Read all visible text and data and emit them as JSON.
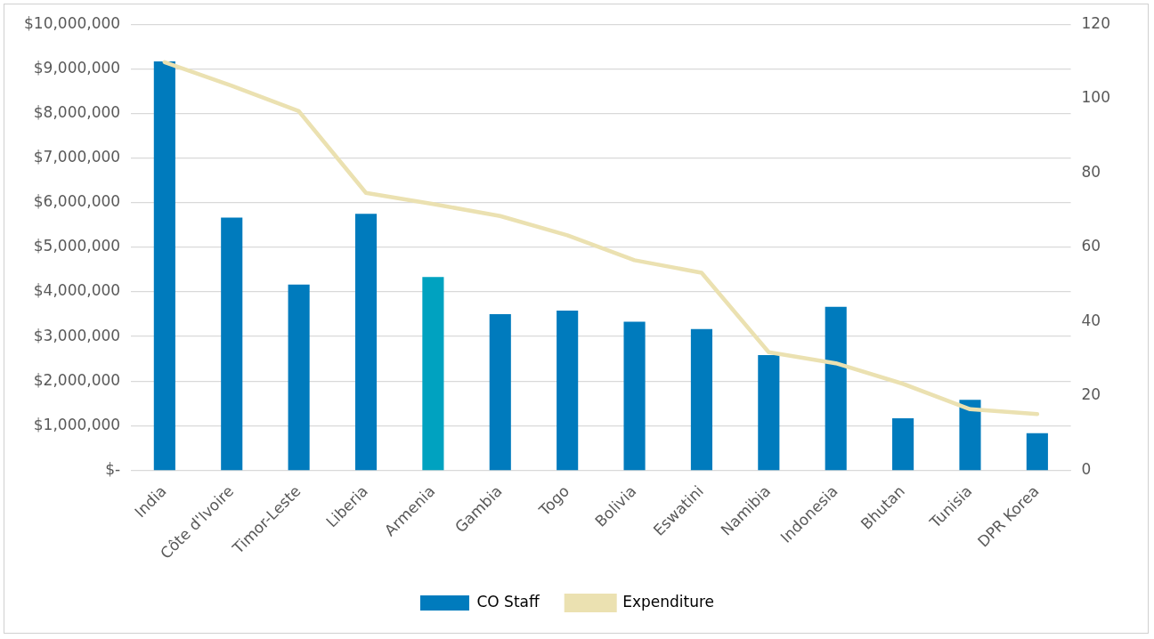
{
  "chart_data": {
    "type": "bar",
    "categories": [
      "India",
      "Côte d'Ivoire",
      "Timor-Leste",
      "Liberia",
      "Armenia",
      "Gambia",
      "Togo",
      "Bolivia",
      "Eswatini",
      "Namibia",
      "Indonesia",
      "Bhutan",
      "Tunisia",
      "DPR Korea"
    ],
    "series": [
      {
        "name": "CO Staff",
        "axis": "y2",
        "color": "#007bbd",
        "colors": [
          "#007bbd",
          "#007bbd",
          "#007bbd",
          "#007bbd",
          "#00a2c0",
          "#007bbd",
          "#007bbd",
          "#007bbd",
          "#007bbd",
          "#007bbd",
          "#007bbd",
          "#007bbd",
          "#007bbd",
          "#007bbd"
        ],
        "values": [
          110,
          68,
          50,
          69,
          52,
          42,
          43,
          40,
          38,
          31,
          44,
          14,
          19,
          10
        ]
      },
      {
        "name": "Expenditure",
        "type": "line",
        "axis": "y",
        "color": "#ebe1b1",
        "values": [
          9150000,
          8620000,
          8050000,
          6220000,
          5970000,
          5700000,
          5270000,
          4710000,
          4430000,
          2650000,
          2400000,
          1940000,
          1370000,
          1260000
        ]
      }
    ],
    "ylim": [
      0,
      10000000
    ],
    "yticks": [
      {
        "value": 0,
        "label": "$-"
      },
      {
        "value": 1000000,
        "label": "$1,000,000"
      },
      {
        "value": 2000000,
        "label": "$2,000,000"
      },
      {
        "value": 3000000,
        "label": "$3,000,000"
      },
      {
        "value": 4000000,
        "label": "$4,000,000"
      },
      {
        "value": 5000000,
        "label": "$5,000,000"
      },
      {
        "value": 6000000,
        "label": "$6,000,000"
      },
      {
        "value": 7000000,
        "label": "$7,000,000"
      },
      {
        "value": 8000000,
        "label": "$8,000,000"
      },
      {
        "value": 9000000,
        "label": "$9,000,000"
      },
      {
        "value": 10000000,
        "label": "$10,000,000"
      }
    ],
    "y2lim": [
      0,
      120
    ],
    "y2ticks": [
      0,
      20,
      40,
      60,
      80,
      100,
      120
    ],
    "grid": "y",
    "legend": "bottom",
    "marker": "none",
    "line_style": "solid"
  }
}
